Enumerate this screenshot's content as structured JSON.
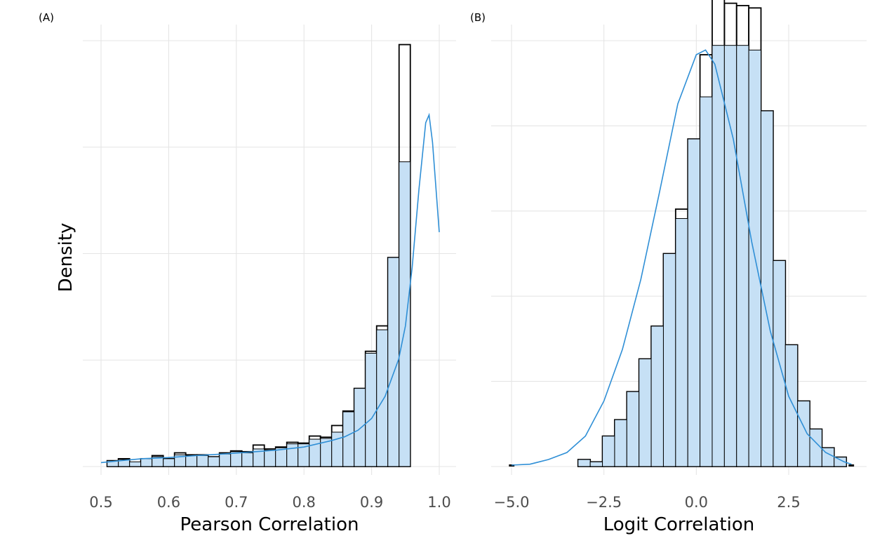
{
  "ylabel": "Density",
  "colors": {
    "fill": "#c6e0f5",
    "line": "#2f8fd6",
    "outline": "#000000",
    "grid": "#e5e5e5"
  },
  "chart_data": [
    {
      "panel": "(A)",
      "type": "bar",
      "xlabel": "Pearson Correlation",
      "ylabel": "Density",
      "xlim": [
        0.49,
        1.0
      ],
      "ylim": [
        0,
        10.9
      ],
      "grid": true,
      "xticks": [
        0.5,
        0.6,
        0.7,
        0.8,
        0.9,
        1.0
      ],
      "xtick_labels": [
        "0.5",
        "0.6",
        "0.7",
        "0.8",
        "0.9",
        "1.0"
      ],
      "bin_width": 0.0166,
      "bin_start": 0.509,
      "histogram": [
        0.15,
        0.2,
        0.1,
        0.2,
        0.28,
        0.2,
        0.35,
        0.3,
        0.3,
        0.25,
        0.35,
        0.4,
        0.38,
        0.55,
        0.45,
        0.5,
        0.62,
        0.6,
        0.78,
        0.75,
        1.05,
        1.42,
        2.0,
        2.95,
        3.6,
        5.35,
        10.8
      ],
      "density_fill": [
        0.15,
        0.18,
        0.12,
        0.2,
        0.25,
        0.2,
        0.3,
        0.28,
        0.28,
        0.25,
        0.32,
        0.38,
        0.35,
        0.45,
        0.42,
        0.48,
        0.58,
        0.58,
        0.7,
        0.72,
        0.88,
        1.4,
        2.0,
        2.9,
        3.5,
        5.35,
        7.8
      ],
      "density_curve": {
        "x": [
          0.5,
          0.53,
          0.56,
          0.6,
          0.64,
          0.68,
          0.72,
          0.76,
          0.8,
          0.84,
          0.86,
          0.88,
          0.9,
          0.92,
          0.94,
          0.95,
          0.96,
          0.97,
          0.98,
          0.985,
          0.99,
          1.0
        ],
        "y": [
          0.1,
          0.15,
          0.2,
          0.23,
          0.28,
          0.32,
          0.37,
          0.42,
          0.5,
          0.66,
          0.76,
          0.93,
          1.23,
          1.8,
          2.75,
          3.6,
          5.1,
          7.1,
          8.8,
          9.0,
          8.3,
          6.0
        ]
      }
    },
    {
      "panel": "(B)",
      "type": "bar",
      "xlabel": "Logit Correlation",
      "xlim": [
        -5.4,
        4.5
      ],
      "ylim": [
        0,
        0.182
      ],
      "grid": true,
      "xticks": [
        -5.0,
        -2.5,
        0.0,
        2.5
      ],
      "xtick_labels": [
        "−5.0",
        "−2.5",
        "0.0",
        "2.5"
      ],
      "bin_width": 0.33,
      "bin_start": -3.2,
      "histogram": [
        0.003,
        0.002,
        0.013,
        0.02,
        0.032,
        0.046,
        0.06,
        0.091,
        0.11,
        0.14,
        0.176,
        0.2,
        0.198,
        0.197,
        0.196,
        0.152,
        0.088,
        0.052,
        0.028,
        0.016,
        0.008,
        0.004
      ],
      "density_fill": [
        0.003,
        0.002,
        0.013,
        0.02,
        0.032,
        0.046,
        0.06,
        0.091,
        0.106,
        0.14,
        0.158,
        0.18,
        0.18,
        0.18,
        0.178,
        0.152,
        0.088,
        0.052,
        0.028,
        0.016,
        0.008,
        0.004
      ],
      "edge_bins": [
        {
          "x": -5.07,
          "value": 0.001
        },
        {
          "x": 4.12,
          "value": 0.001
        }
      ],
      "density_curve": {
        "x": [
          -5.0,
          -4.5,
          -4.0,
          -3.5,
          -3.0,
          -2.5,
          -2.0,
          -1.5,
          -1.0,
          -0.5,
          0.0,
          0.25,
          0.5,
          1.0,
          1.5,
          2.0,
          2.5,
          3.0,
          3.5,
          4.0,
          4.2
        ],
        "y": [
          0.0006,
          0.001,
          0.003,
          0.006,
          0.013,
          0.028,
          0.05,
          0.08,
          0.117,
          0.155,
          0.176,
          0.178,
          0.172,
          0.14,
          0.096,
          0.058,
          0.03,
          0.014,
          0.006,
          0.002,
          0.001
        ]
      }
    }
  ]
}
